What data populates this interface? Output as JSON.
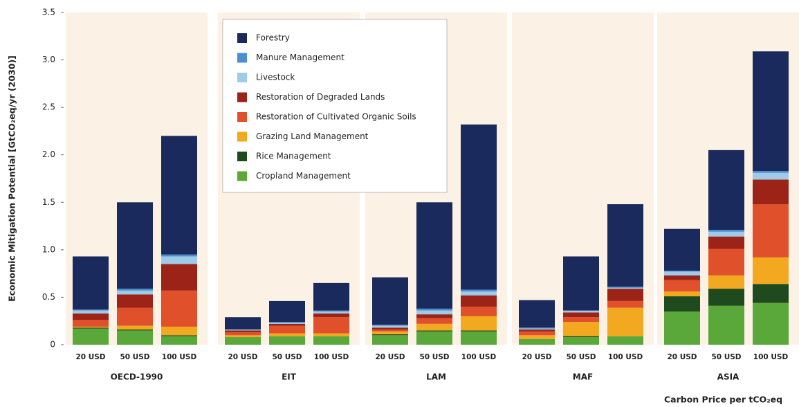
{
  "chart_data": {
    "type": "bar",
    "stacked": true,
    "y_label": "Economic Mitigation Potential [GtCO₂eq/yr (2030)]",
    "x_label": "Carbon Price per tCO₂eq",
    "groups": [
      "OECD-1990",
      "EIT",
      "LAM",
      "MAF",
      "ASIA"
    ],
    "categories": [
      "20 USD",
      "50 USD",
      "100 USD",
      "20 USD",
      "50 USD",
      "100 USD",
      "20 USD",
      "50 USD",
      "100 USD",
      "20 USD",
      "50 USD",
      "100 USD",
      "20 USD",
      "50 USD",
      "100 USD"
    ],
    "ylim": [
      0,
      3.5
    ],
    "yticks": [
      0,
      0.5,
      {
        "value": 1,
        "label": "1.0"
      },
      1.5,
      {
        "value": 2,
        "label": "2.0"
      },
      2.5,
      {
        "value": 3,
        "label": "3.0"
      },
      3.5
    ],
    "panel_color": "#fbf1e4",
    "series": [
      {
        "name": "Forestry",
        "color": "#1b2a5c",
        "values": [
          0.56,
          0.91,
          1.25,
          0.13,
          0.22,
          0.29,
          0.5,
          1.12,
          1.74,
          0.29,
          0.57,
          0.87,
          0.44,
          0.84,
          1.26
        ]
      },
      {
        "name": "Manure Management",
        "color": "#4a90d0",
        "values": [
          0.01,
          0.02,
          0.02,
          0,
          0.01,
          0.01,
          0.01,
          0.02,
          0.02,
          0.01,
          0,
          0.01,
          0.01,
          0.02,
          0.02
        ]
      },
      {
        "name": "Livestock",
        "color": "#9fcbe8",
        "values": [
          0.03,
          0.04,
          0.08,
          0.01,
          0.01,
          0.02,
          0.02,
          0.04,
          0.04,
          0.01,
          0.02,
          0.01,
          0.04,
          0.05,
          0.07
        ]
      },
      {
        "name": "Restoration of Degraded Lands",
        "color": "#9b2318",
        "values": [
          0.07,
          0.14,
          0.28,
          0.02,
          0.02,
          0.04,
          0.02,
          0.04,
          0.12,
          0.02,
          0.05,
          0.13,
          0.05,
          0.13,
          0.26
        ]
      },
      {
        "name": "Restoration of Cultivated Organic Soils",
        "color": "#e0502a",
        "values": [
          0.07,
          0.19,
          0.38,
          0.03,
          0.08,
          0.17,
          0.02,
          0.06,
          0.1,
          0.04,
          0.05,
          0.07,
          0.12,
          0.28,
          0.56
        ]
      },
      {
        "name": "Grazing Land Management",
        "color": "#f3a91f",
        "values": [
          0.01,
          0.04,
          0.09,
          0.02,
          0.03,
          0.03,
          0.03,
          0.07,
          0.15,
          0.04,
          0.15,
          0.3,
          0.05,
          0.14,
          0.28
        ]
      },
      {
        "name": "Rice Management",
        "color": "#1f4a1e",
        "values": [
          0.01,
          0.01,
          0.01,
          0,
          0,
          0,
          0.01,
          0.01,
          0.01,
          0,
          0.01,
          0,
          0.16,
          0.18,
          0.2
        ]
      },
      {
        "name": "Cropland Management",
        "color": "#5aa83a",
        "values": [
          0.17,
          0.15,
          0.09,
          0.08,
          0.09,
          0.09,
          0.1,
          0.14,
          0.14,
          0.06,
          0.08,
          0.09,
          0.35,
          0.41,
          0.44
        ]
      }
    ]
  }
}
